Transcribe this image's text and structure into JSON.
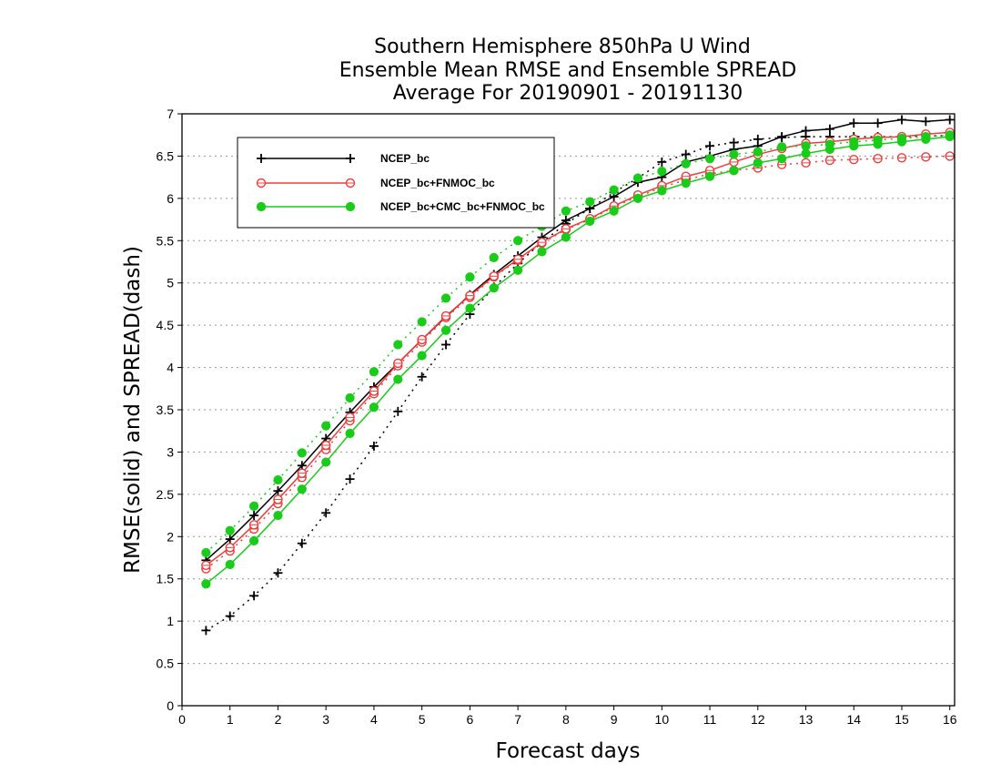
{
  "chart_data": {
    "type": "line",
    "title": "Southern Hemisphere 850hPa U Wind",
    "subtitle": "Ensemble Mean RMSE and Ensemble SPREAD",
    "subtitle2": "Average For 20190901 - 20191130",
    "xlabel": "Forecast days",
    "ylabel": "RMSE(solid) and SPREAD(dash)",
    "xlim": [
      0,
      16.1
    ],
    "ylim": [
      0,
      7
    ],
    "xticks": [
      0,
      1,
      2,
      3,
      4,
      5,
      6,
      7,
      8,
      9,
      10,
      11,
      12,
      13,
      14,
      15,
      16
    ],
    "yticks": [
      0,
      0.5,
      1,
      1.5,
      2,
      2.5,
      3,
      3.5,
      4,
      4.5,
      5,
      5.5,
      6,
      6.5,
      7
    ],
    "ytick_labels": [
      "0",
      "0.5",
      "1",
      "1.5",
      "2",
      "2.5",
      "3",
      "3.5",
      "4",
      "4.5",
      "5",
      "5.5",
      "6",
      "6.5",
      "7"
    ],
    "grid": "horizontal dotted",
    "legend_position": "top-left",
    "x": [
      0.5,
      1,
      1.5,
      2,
      2.5,
      3,
      3.5,
      4,
      4.5,
      5,
      5.5,
      6,
      6.5,
      7,
      7.5,
      8,
      8.5,
      9,
      9.5,
      10,
      10.5,
      11,
      11.5,
      12,
      12.5,
      13,
      13.5,
      14,
      14.5,
      15,
      15.5,
      16
    ],
    "series": [
      {
        "name": "NCEP_bc",
        "color": "#000000",
        "marker": "plus",
        "rmse": [
          1.72,
          1.97,
          2.25,
          2.54,
          2.84,
          3.16,
          3.47,
          3.77,
          4.05,
          4.33,
          4.6,
          4.86,
          5.1,
          5.32,
          5.54,
          5.74,
          5.88,
          6.02,
          6.19,
          6.25,
          6.43,
          6.5,
          6.58,
          6.62,
          6.73,
          6.8,
          6.82,
          6.89,
          6.89,
          6.93,
          6.91,
          6.93
        ],
        "spread": [
          0.89,
          1.06,
          1.3,
          1.57,
          1.92,
          2.28,
          2.68,
          3.07,
          3.48,
          3.89,
          4.27,
          4.63,
          4.95,
          5.23,
          5.48,
          5.7,
          5.88,
          6.07,
          6.24,
          6.43,
          6.52,
          6.62,
          6.66,
          6.7,
          6.72,
          6.73,
          6.73,
          6.73,
          6.73,
          6.73,
          6.74,
          6.74
        ]
      },
      {
        "name": "NCEP_bc+FNMOC_bc",
        "color": "#f03c3c",
        "marker": "open-circle",
        "rmse": [
          1.66,
          1.87,
          2.14,
          2.44,
          2.75,
          3.08,
          3.41,
          3.72,
          4.05,
          4.33,
          4.61,
          4.85,
          5.08,
          5.28,
          5.48,
          5.64,
          5.76,
          5.91,
          6.04,
          6.15,
          6.26,
          6.33,
          6.43,
          6.52,
          6.59,
          6.65,
          6.67,
          6.7,
          6.72,
          6.73,
          6.76,
          6.78
        ],
        "spread": [
          1.62,
          1.83,
          2.09,
          2.39,
          2.7,
          3.03,
          3.37,
          3.69,
          4.02,
          4.3,
          4.59,
          4.83,
          5.07,
          5.27,
          5.47,
          5.63,
          5.75,
          5.9,
          6.02,
          6.13,
          6.22,
          6.29,
          6.33,
          6.36,
          6.4,
          6.42,
          6.45,
          6.46,
          6.47,
          6.48,
          6.49,
          6.5
        ]
      },
      {
        "name": "NCEP_bc+CMC_bc+FNMOC_bc",
        "color": "#19cc19",
        "marker": "filled-circle",
        "rmse": [
          1.44,
          1.67,
          1.95,
          2.25,
          2.56,
          2.88,
          3.22,
          3.53,
          3.86,
          4.14,
          4.44,
          4.7,
          4.94,
          5.15,
          5.37,
          5.54,
          5.73,
          5.85,
          6.0,
          6.09,
          6.18,
          6.26,
          6.33,
          6.42,
          6.47,
          6.53,
          6.58,
          6.62,
          6.64,
          6.67,
          6.7,
          6.73
        ],
        "spread": [
          1.81,
          2.07,
          2.36,
          2.67,
          2.99,
          3.31,
          3.64,
          3.95,
          4.27,
          4.54,
          4.82,
          5.07,
          5.3,
          5.5,
          5.67,
          5.85,
          5.96,
          6.1,
          6.24,
          6.32,
          6.41,
          6.47,
          6.52,
          6.55,
          6.61,
          6.62,
          6.64,
          6.67,
          6.69,
          6.71,
          6.73,
          6.75
        ]
      }
    ]
  }
}
